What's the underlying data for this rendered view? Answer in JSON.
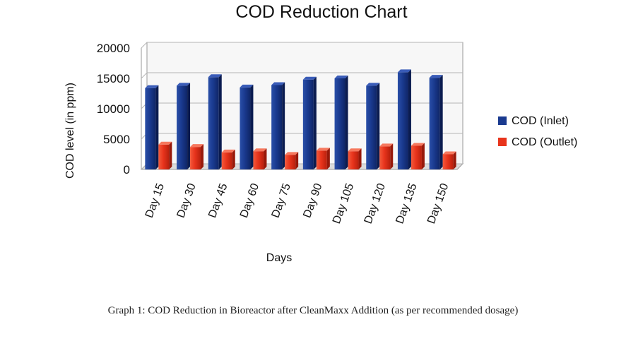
{
  "chart_data": {
    "type": "bar",
    "title": "COD Reduction Chart",
    "xlabel": "Days",
    "ylabel": "COD level (in ppm)",
    "categories": [
      "Day 15",
      "Day 30",
      "Day 45",
      "Day 60",
      "Day 75",
      "Day 90",
      "Day 105",
      "Day 120",
      "Day 135",
      "Day 150"
    ],
    "series": [
      {
        "name": "COD (Inlet)",
        "values": [
          13400,
          13800,
          15200,
          13500,
          13900,
          14800,
          15000,
          13800,
          16000,
          15100
        ],
        "color": "#1a3a8f"
      },
      {
        "name": "COD (Outlet)",
        "values": [
          4100,
          3700,
          2800,
          3000,
          2400,
          3100,
          3000,
          3800,
          3900,
          2500
        ],
        "color": "#e8341c"
      }
    ],
    "ylim": [
      0,
      20000
    ],
    "yticks": [
      0,
      5000,
      10000,
      15000,
      20000
    ],
    "grid": true,
    "legend_position": "right"
  },
  "caption": "Graph 1: COD Reduction in Bioreactor after CleanMaxx Addition (as per recommended dosage)"
}
